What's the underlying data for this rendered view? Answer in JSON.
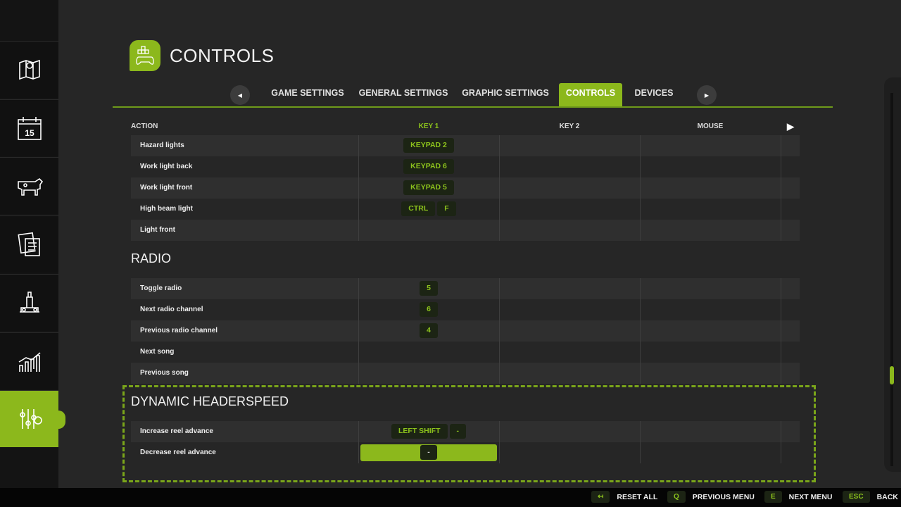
{
  "header": {
    "title": "CONTROLS",
    "icon": "gamepad-keys-icon"
  },
  "sidebar": {
    "items": [
      {
        "icon": "map-icon"
      },
      {
        "icon": "calendar-icon",
        "text": "15"
      },
      {
        "icon": "cow-icon"
      },
      {
        "icon": "contracts-icon"
      },
      {
        "icon": "production-icon"
      },
      {
        "icon": "statistics-icon"
      },
      {
        "icon": "settings-sliders-icon",
        "active": true
      }
    ]
  },
  "tabs": [
    {
      "label": "GAME SETTINGS"
    },
    {
      "label": "GENERAL SETTINGS"
    },
    {
      "label": "GRAPHIC SETTINGS"
    },
    {
      "label": "CONTROLS",
      "active": true
    },
    {
      "label": "DEVICES"
    }
  ],
  "columns": {
    "action": "ACTION",
    "key1": "KEY 1",
    "key2": "KEY 2",
    "mouse": "MOUSE"
  },
  "rows": [
    {
      "action": "Hazard lights",
      "key1": [
        "KEYPAD 2"
      ]
    },
    {
      "action": "Work light back",
      "key1": [
        "KEYPAD 6"
      ]
    },
    {
      "action": "Work light front",
      "key1": [
        "KEYPAD 5"
      ]
    },
    {
      "action": "High beam light",
      "key1": [
        "CTRL",
        "F"
      ]
    },
    {
      "action": "Light front",
      "key1": []
    }
  ],
  "sections": [
    {
      "title": "RADIO",
      "rows": [
        {
          "action": "Toggle radio",
          "key1": [
            "5"
          ]
        },
        {
          "action": "Next radio channel",
          "key1": [
            "6"
          ]
        },
        {
          "action": "Previous radio channel",
          "key1": [
            "4"
          ]
        },
        {
          "action": "Next song",
          "key1": []
        },
        {
          "action": "Previous song",
          "key1": []
        }
      ]
    },
    {
      "title": "DYNAMIC HEADERSPEED",
      "rows": [
        {
          "action": "Increase reel advance",
          "key1": [
            "LEFT SHIFT",
            "-"
          ]
        },
        {
          "action": "Decrease reel advance",
          "key1": [
            "-"
          ],
          "selected": true
        }
      ]
    }
  ],
  "footer": [
    {
      "key": "↤",
      "label": "RESET ALL"
    },
    {
      "key": "Q",
      "label": "PREVIOUS MENU"
    },
    {
      "key": "E",
      "label": "NEXT MENU"
    },
    {
      "key": "ESC",
      "label": "BACK"
    }
  ],
  "colors": {
    "accent": "#8cb81c",
    "background": "#262626"
  }
}
